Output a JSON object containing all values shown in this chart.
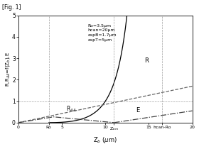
{
  "title": "[Fig. 1]",
  "xlabel": "Z$_b$ (μm)",
  "ylabel": "R,R$_{AA}$=f(Z$_b$),E",
  "Ro": 3.5,
  "hcan": 20.0,
  "espB": 1.7,
  "espT": 5.0,
  "xlim": [
    0,
    20
  ],
  "ylim": [
    0,
    5
  ],
  "annotation": "Ro=3.5μm\nhcan=20μm\nespB=1.7μm\nespT=5μm",
  "hline_y": 1.0,
  "vline_Ro": 3.5,
  "vline_hcanRo": 16.5,
  "vline_Zbm": 11.0,
  "Zbm": 11.0,
  "color_R": "#000000",
  "color_RAA": "#666666",
  "color_E": "#444444",
  "color_grid": "#888888",
  "background": "#ffffff",
  "label_R": "R",
  "label_RAA": "R$_{AA}$",
  "label_E": "E"
}
